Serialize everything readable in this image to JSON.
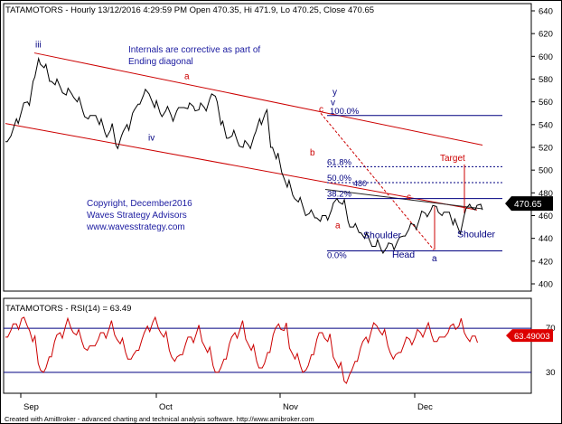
{
  "header": {
    "text": "TATAMOTORS - Hourly 13/12/2016 4:29:59 PM Open 470.35, Hi 471.9, Lo 470.25, Close 470.65"
  },
  "footer": {
    "text": "Created with AmiBroker - advanced charting and technical analysis software. http://www.amibroker.com"
  },
  "colors": {
    "price": "#000000",
    "channel": "#cc0000",
    "fib": "#000080",
    "annotation": "#1a1aa0",
    "wave_label": "#cc0000",
    "rsi": "#cc0000",
    "last_price_badge": "#000000",
    "rsi_badge": "#dd0000"
  },
  "chart_data": [
    {
      "type": "line",
      "series": [
        {
          "name": "",
          "values": [
            525,
            530,
            545,
            553,
            560,
            578,
            598,
            590,
            578,
            575,
            572,
            566,
            567,
            560,
            552,
            545,
            548,
            540,
            533,
            535,
            522,
            530,
            540,
            550,
            558,
            566,
            567,
            555,
            550,
            552,
            548,
            552,
            555,
            554,
            556,
            553,
            555,
            563,
            565,
            540,
            528,
            530,
            525,
            520,
            522,
            530,
            545,
            550,
            520,
            510,
            498,
            485,
            478,
            472,
            465,
            462,
            458,
            455,
            460,
            465,
            475,
            470,
            455,
            450,
            445,
            440,
            437,
            433,
            430,
            432,
            435,
            438,
            442,
            448,
            452,
            458,
            462,
            465,
            468,
            460,
            463,
            452,
            448,
            460,
            470,
            465,
            470
          ]
        }
      ],
      "x_ticks": [
        "Sep",
        "Oct",
        "Nov",
        "Dec"
      ],
      "y_ticks": [
        400,
        420,
        440,
        460,
        480,
        500,
        520,
        540,
        560,
        580,
        600,
        620,
        640
      ],
      "ylim": [
        385,
        650
      ],
      "last_price": "470.65",
      "fibonacci": [
        {
          "label": "100.0%",
          "value": 548
        },
        {
          "label": "61.8%",
          "value": 503
        },
        {
          "label": "50.0%",
          "value": 489
        },
        {
          "label": "38.2%",
          "value": 475
        },
        {
          "label": "0.0%",
          "value": 429
        }
      ],
      "wave_labels": [
        "iii",
        "iv",
        "a",
        "b",
        "c",
        "v",
        "y",
        "a",
        "c",
        "a",
        "Target"
      ],
      "pattern_labels": [
        "Shoulder",
        "Head",
        "Shoulder"
      ],
      "price_tag": "480",
      "text_annotations": [
        "Internals are corrective as part of",
        "Ending diagonal",
        "Copyright, December2016",
        "Waves Strategy Advisors",
        "www.wavesstrategy.com"
      ]
    },
    {
      "type": "line",
      "title": "TATAMOTORS - RSI(14) = 63.49",
      "series": [
        {
          "name": "RSI(14)",
          "values": [
            62,
            68,
            74,
            79,
            72,
            58,
            38,
            30,
            44,
            58,
            66,
            72,
            70,
            64,
            58,
            50,
            54,
            60,
            66,
            70,
            64,
            56,
            48,
            42,
            50,
            60,
            72,
            76,
            70,
            62,
            50,
            40,
            46,
            56,
            62,
            66,
            58,
            48,
            36,
            30,
            42,
            56,
            66,
            70,
            60,
            50,
            40,
            34,
            48,
            64,
            74,
            68,
            52,
            42,
            36,
            32,
            46,
            60,
            66,
            58,
            44,
            34,
            22,
            28,
            40,
            52,
            62,
            68,
            72,
            64,
            54,
            42,
            48,
            56,
            60,
            62,
            66,
            70,
            64,
            58,
            62,
            66,
            74,
            72,
            66,
            58,
            63
          ]
        }
      ],
      "y_ticks": [
        30,
        70
      ],
      "ylim": [
        20,
        80
      ],
      "last_value": "63.49003"
    }
  ]
}
